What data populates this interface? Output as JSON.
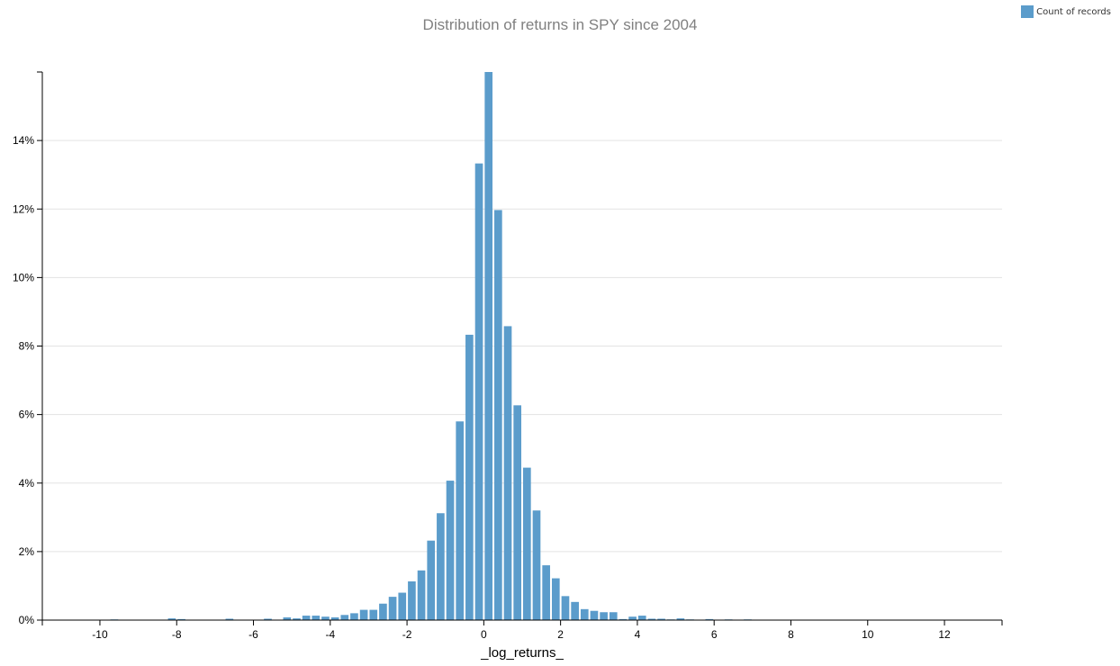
{
  "chart_data": {
    "type": "bar",
    "title": "Distribution of returns in SPY since 2004",
    "xlabel": "_log_returns_",
    "ylabel": "",
    "xlim": [
      -11.5,
      13.5
    ],
    "ylim": [
      0,
      16
    ],
    "bin_width": 0.25,
    "x_ticks": [
      -10,
      -8,
      -6,
      -4,
      -2,
      0,
      2,
      4,
      6,
      8,
      10,
      12
    ],
    "x_tick_labels": [
      "-10",
      "-8",
      "-6",
      "-4",
      "-2",
      "0",
      "2",
      "4",
      "6",
      "8",
      "10",
      "12"
    ],
    "y_ticks": [
      0,
      2,
      4,
      6,
      8,
      10,
      12,
      14
    ],
    "y_tick_labels": [
      "0%",
      "2%",
      "4%",
      "6%",
      "8%",
      "10%",
      "12%",
      "14%"
    ],
    "grid": true,
    "legend_position": "top-right",
    "color": "#5b9ccb",
    "series": [
      {
        "name": "Count of records",
        "x": [
          -9.75,
          -8.25,
          -8.0,
          -6.75,
          -5.75,
          -5.25,
          -5.0,
          -4.75,
          -4.5,
          -4.25,
          -4.0,
          -3.75,
          -3.5,
          -3.25,
          -3.0,
          -2.75,
          -2.5,
          -2.25,
          -2.0,
          -1.75,
          -1.5,
          -1.25,
          -1.0,
          -0.75,
          -0.5,
          -0.25,
          0.0,
          0.25,
          0.5,
          0.75,
          1.0,
          1.25,
          1.5,
          1.75,
          2.0,
          2.25,
          2.5,
          2.75,
          3.0,
          3.25,
          3.5,
          3.75,
          4.0,
          4.25,
          4.5,
          4.75,
          5.0,
          5.25,
          5.75,
          6.25,
          6.75
        ],
        "values": [
          0.02,
          0.05,
          0.03,
          0.04,
          0.04,
          0.08,
          0.05,
          0.13,
          0.13,
          0.1,
          0.08,
          0.15,
          0.2,
          0.3,
          0.3,
          0.48,
          0.68,
          0.8,
          1.13,
          1.45,
          2.32,
          3.12,
          4.07,
          5.8,
          8.33,
          13.33,
          16.0,
          11.97,
          8.58,
          6.27,
          4.45,
          3.2,
          1.6,
          1.22,
          0.7,
          0.53,
          0.32,
          0.27,
          0.23,
          0.23,
          0.03,
          0.1,
          0.13,
          0.04,
          0.04,
          0.02,
          0.05,
          0.02,
          0.03,
          0.02,
          0.02
        ]
      }
    ]
  }
}
